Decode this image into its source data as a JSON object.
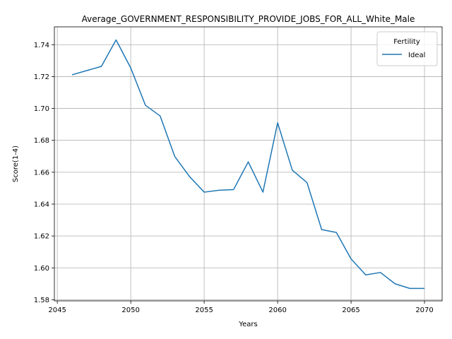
{
  "chart_data": {
    "type": "line",
    "title": "Average_GOVERNMENT_RESPONSIBILITY_PROVIDE_JOBS_FOR_ALL_White_Male",
    "xlabel": "Years",
    "ylabel": "Score(1-4)",
    "xlim": [
      2044.8,
      2071.2
    ],
    "ylim": [
      1.5793,
      1.7512
    ],
    "xticks": [
      2045,
      2050,
      2055,
      2060,
      2065,
      2070
    ],
    "yticks": [
      1.58,
      1.6,
      1.62,
      1.64,
      1.66,
      1.68,
      1.7,
      1.72,
      1.74
    ],
    "grid": true,
    "legend": {
      "title": "Fertility",
      "placement": "top-right"
    },
    "series": [
      {
        "name": "Ideal",
        "color": "#1f77b4",
        "x": [
          2046,
          2048,
          2049,
          2050,
          2051,
          2052,
          2053,
          2054,
          2055,
          2056,
          2057,
          2058,
          2059,
          2060,
          2061,
          2062,
          2063,
          2064,
          2065,
          2066,
          2067,
          2068,
          2069,
          2070
        ],
        "y": [
          1.7211,
          1.7264,
          1.743,
          1.7254,
          1.702,
          1.6953,
          1.6698,
          1.6573,
          1.6475,
          1.6487,
          1.6491,
          1.6665,
          1.6475,
          1.691,
          1.6613,
          1.6535,
          1.624,
          1.6222,
          1.6056,
          1.5956,
          1.5971,
          1.59,
          1.5871,
          1.5871
        ]
      }
    ]
  }
}
